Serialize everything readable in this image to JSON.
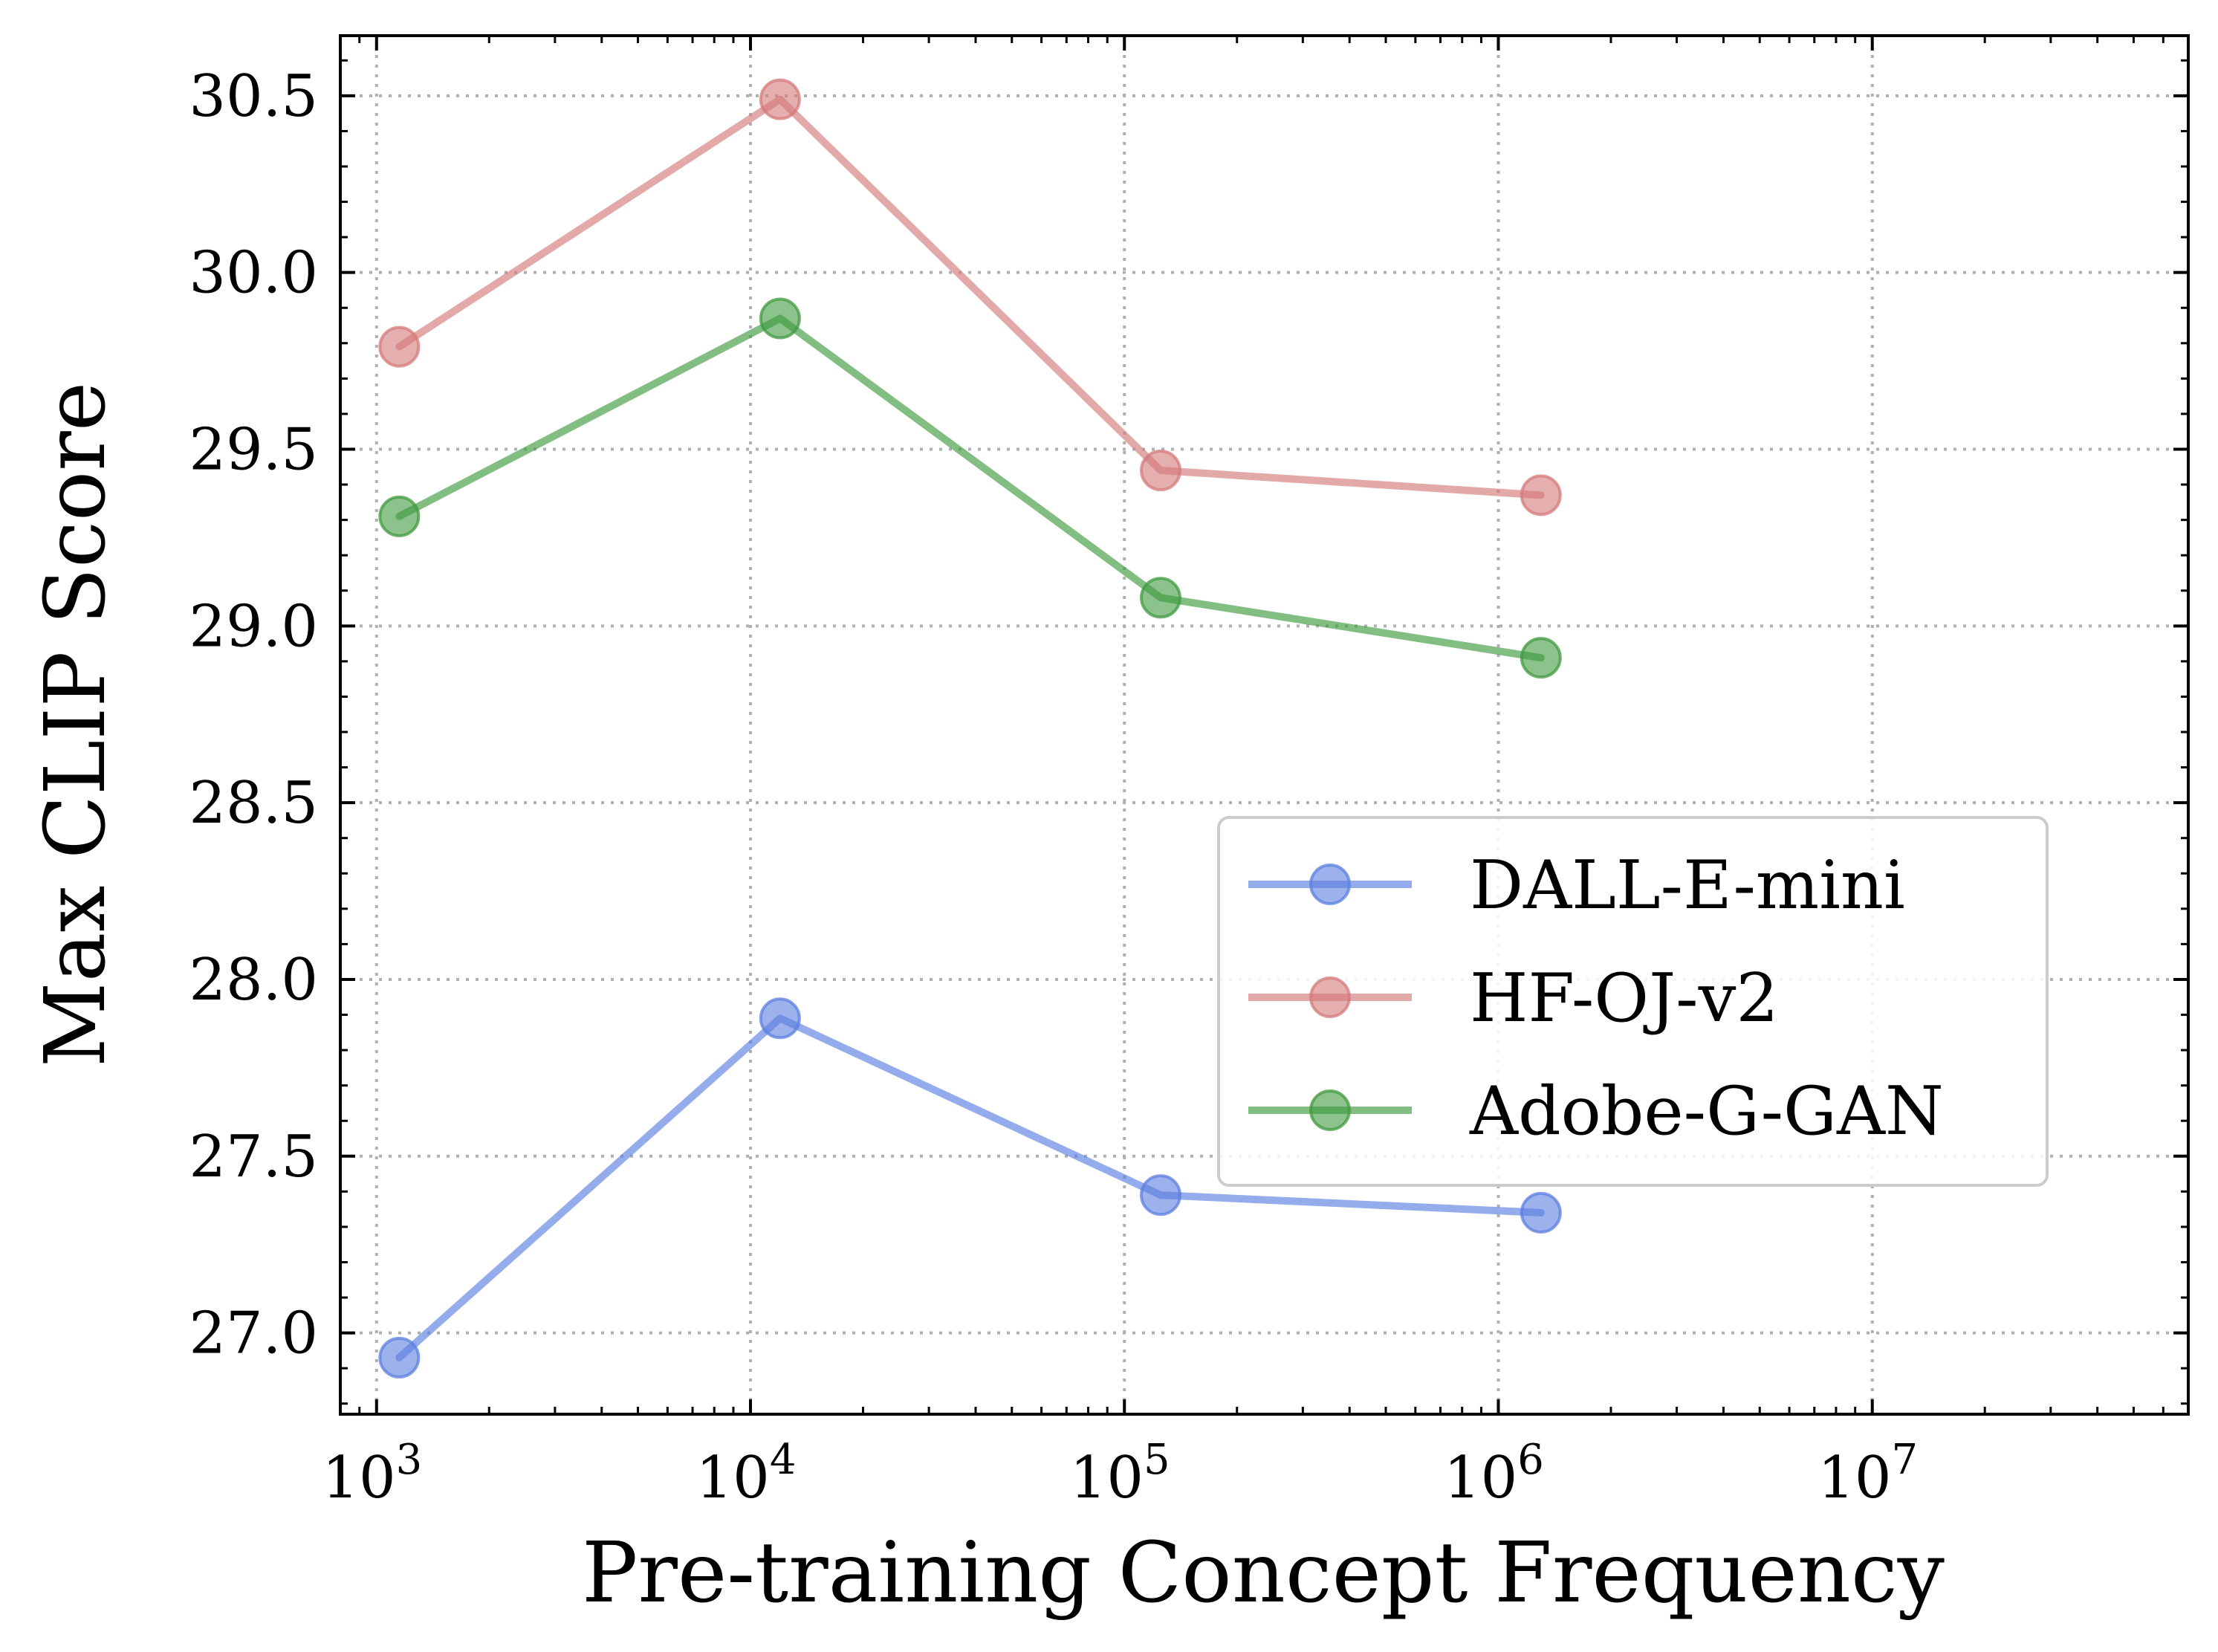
{
  "chart_data": {
    "type": "line",
    "title": "",
    "xlabel": "Pre-training Concept Frequency",
    "ylabel": "Max CLIP Score",
    "xscale": "log",
    "xlim": [
      800,
      70000000
    ],
    "ylim": [
      26.77,
      30.67
    ],
    "grid": true,
    "legend_position": "center-right",
    "x_ticks": [
      {
        "value": 1000,
        "base": "10",
        "exp": "3"
      },
      {
        "value": 10000,
        "base": "10",
        "exp": "4"
      },
      {
        "value": 100000,
        "base": "10",
        "exp": "5"
      },
      {
        "value": 1000000,
        "base": "10",
        "exp": "6"
      },
      {
        "value": 10000000,
        "base": "10",
        "exp": "7"
      }
    ],
    "y_ticks": [
      27.0,
      27.5,
      28.0,
      28.5,
      29.0,
      29.5,
      30.0,
      30.5
    ],
    "y_tick_labels": [
      "27.0",
      "27.5",
      "28.0",
      "28.5",
      "29.0",
      "29.5",
      "30.0",
      "30.5"
    ],
    "x": [
      1150,
      12000,
      125000,
      1300000
    ],
    "series": [
      {
        "name": "DALL-E-mini",
        "color": "#5b7fe0",
        "values": [
          26.93,
          27.89,
          27.39,
          27.34
        ]
      },
      {
        "name": "HF-OJ-v2",
        "color": "#d47a7a",
        "values": [
          29.79,
          30.49,
          29.44,
          29.37
        ]
      },
      {
        "name": "Adobe-G-GAN",
        "color": "#3f9a3f",
        "values": [
          29.31,
          29.87,
          29.08,
          28.91
        ]
      }
    ]
  }
}
